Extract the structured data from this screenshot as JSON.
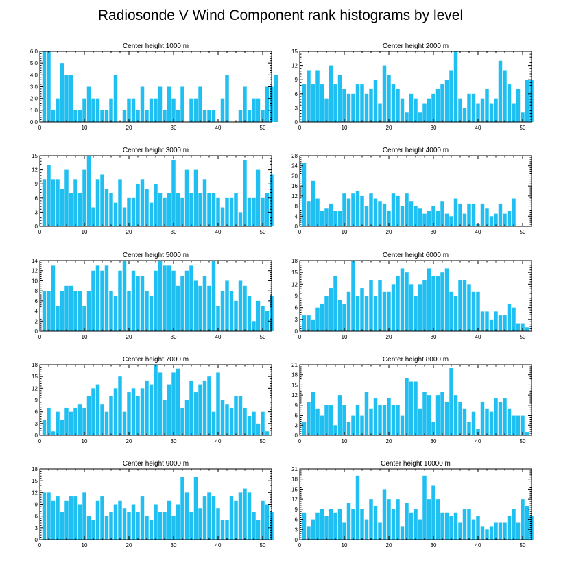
{
  "figure": {
    "title": "Radiosonde V Wind Component rank histograms by level",
    "bar_color": "#1fbff1"
  },
  "chart_data": [
    {
      "type": "bar",
      "title": "Center height 1000 m",
      "x_start": 1,
      "xlim": [
        0,
        52
      ],
      "xticks": [
        0,
        10,
        20,
        30,
        40,
        50
      ],
      "ylim": [
        0,
        6
      ],
      "yticks": [
        0,
        1,
        2,
        3,
        4,
        5,
        6
      ],
      "ytick_labels": [
        "0.0",
        "1.0",
        "2.0",
        "3.0",
        "4.0",
        "5.0",
        "6.0"
      ],
      "values": [
        6,
        6,
        1,
        2,
        5,
        4,
        4,
        1,
        1,
        2,
        3,
        2,
        2,
        1,
        1,
        2,
        4,
        0,
        1,
        2,
        2,
        1,
        3,
        1,
        2,
        2,
        3,
        1,
        3,
        2,
        1,
        3,
        0,
        2,
        2,
        3,
        1,
        1,
        1,
        0,
        2,
        4,
        0,
        0,
        1,
        3,
        1,
        2,
        2,
        1,
        3,
        3,
        4
      ]
    },
    {
      "type": "bar",
      "title": "Center height 2000 m",
      "x_start": 1,
      "xlim": [
        0,
        52
      ],
      "xticks": [
        0,
        10,
        20,
        30,
        40,
        50
      ],
      "ylim": [
        0,
        15
      ],
      "yticks": [
        0,
        3,
        6,
        9,
        12,
        15
      ],
      "ytick_labels": [
        "0",
        "3",
        "6",
        "9",
        "12",
        "15"
      ],
      "values": [
        8,
        11,
        8,
        11,
        8,
        5,
        12,
        8,
        10,
        7,
        6,
        6,
        8,
        8,
        6,
        7,
        9,
        4,
        12,
        10,
        8,
        7,
        5,
        2,
        6,
        5,
        2,
        4,
        5,
        6,
        7,
        8,
        9,
        11,
        15,
        5,
        3,
        6,
        6,
        4,
        5,
        7,
        4,
        5,
        13,
        11,
        8,
        4,
        7,
        2,
        9,
        9
      ]
    },
    {
      "type": "bar",
      "title": "Center height 3000 m",
      "x_start": 1,
      "xlim": [
        0,
        52
      ],
      "xticks": [
        0,
        10,
        20,
        30,
        40,
        50
      ],
      "ylim": [
        0,
        15
      ],
      "yticks": [
        0,
        3,
        6,
        9,
        12,
        15
      ],
      "ytick_labels": [
        "0",
        "3",
        "6",
        "9",
        "12",
        "15"
      ],
      "values": [
        10,
        13,
        10,
        10,
        8,
        12,
        7,
        10,
        7,
        12,
        15,
        4,
        10,
        11,
        8,
        7,
        5,
        10,
        4,
        6,
        6,
        9,
        10,
        8,
        5,
        9,
        7,
        6,
        7,
        14,
        7,
        6,
        12,
        7,
        12,
        7,
        10,
        7,
        7,
        6,
        4,
        6,
        6,
        7,
        3,
        14,
        6,
        6,
        12,
        6,
        7,
        11
      ]
    },
    {
      "type": "bar",
      "title": "Center height 4000 m",
      "x_start": 1,
      "xlim": [
        0,
        52
      ],
      "xticks": [
        0,
        10,
        20,
        30,
        40,
        50
      ],
      "ylim": [
        0,
        28
      ],
      "yticks": [
        0,
        4,
        8,
        12,
        16,
        20,
        24,
        28
      ],
      "ytick_labels": [
        "0",
        "4",
        "8",
        "12",
        "16",
        "20",
        "24",
        "28"
      ],
      "values": [
        25,
        10,
        18,
        11,
        6,
        7,
        9,
        6,
        6,
        13,
        11,
        13,
        14,
        12,
        8,
        13,
        11,
        10,
        9,
        6,
        13,
        12,
        8,
        13,
        10,
        8,
        7,
        5,
        6,
        8,
        6,
        10,
        5,
        4,
        11,
        9,
        5,
        9,
        9,
        1,
        9,
        7,
        4,
        5,
        9,
        5,
        6,
        11
      ]
    },
    {
      "type": "bar",
      "title": "Center height 5000 m",
      "x_start": 1,
      "xlim": [
        0,
        52
      ],
      "xticks": [
        0,
        10,
        20,
        30,
        40,
        50
      ],
      "ylim": [
        0,
        14
      ],
      "yticks": [
        0,
        2,
        4,
        6,
        8,
        10,
        12,
        14
      ],
      "ytick_labels": [
        "0",
        "2",
        "4",
        "6",
        "8",
        "10",
        "12",
        "14"
      ],
      "values": [
        8,
        8,
        13,
        5,
        8,
        9,
        9,
        8,
        8,
        5,
        8,
        12,
        13,
        12,
        13,
        8,
        7,
        12,
        14,
        8,
        12,
        11,
        11,
        8,
        7,
        12,
        14,
        13,
        13,
        12,
        9,
        11,
        12,
        13,
        10,
        9,
        11,
        9,
        14,
        5,
        8,
        10,
        8,
        6,
        10,
        9,
        7,
        2,
        6,
        5,
        4,
        7
      ]
    },
    {
      "type": "bar",
      "title": "Center height 6000 m",
      "x_start": 1,
      "xlim": [
        0,
        52
      ],
      "xticks": [
        0,
        10,
        20,
        30,
        40,
        50
      ],
      "ylim": [
        0,
        18
      ],
      "yticks": [
        0,
        3,
        6,
        9,
        12,
        15,
        18
      ],
      "ytick_labels": [
        "0",
        "3",
        "6",
        "9",
        "12",
        "15",
        "18"
      ],
      "values": [
        4,
        4,
        3,
        6,
        7,
        9,
        11,
        14,
        8,
        7,
        10,
        18,
        9,
        11,
        9,
        13,
        9,
        13,
        10,
        10,
        12,
        14,
        16,
        15,
        12,
        9,
        12,
        13,
        16,
        14,
        14,
        15,
        16,
        10,
        9,
        13,
        13,
        12,
        10,
        10,
        5,
        5,
        3,
        5,
        4,
        4,
        7,
        6,
        2,
        2,
        1
      ]
    },
    {
      "type": "bar",
      "title": "Center height 7000 m",
      "x_start": 1,
      "xlim": [
        0,
        52
      ],
      "xticks": [
        0,
        10,
        20,
        30,
        40,
        50
      ],
      "ylim": [
        0,
        18
      ],
      "yticks": [
        0,
        3,
        6,
        9,
        12,
        15,
        18
      ],
      "ytick_labels": [
        "0",
        "3",
        "6",
        "9",
        "12",
        "15",
        "18"
      ],
      "values": [
        4,
        7,
        1,
        6,
        4,
        7,
        6,
        7,
        8,
        7,
        10,
        12,
        13,
        8,
        6,
        10,
        12,
        15,
        6,
        11,
        12,
        10,
        12,
        14,
        13,
        18,
        16,
        9,
        13,
        16,
        17,
        7,
        9,
        14,
        11,
        13,
        14,
        15,
        6,
        16,
        9,
        8,
        7,
        10,
        10,
        7,
        5,
        6,
        3,
        6,
        1
      ]
    },
    {
      "type": "bar",
      "title": "Center height 8000 m",
      "x_start": 1,
      "xlim": [
        0,
        52
      ],
      "xticks": [
        0,
        10,
        20,
        30,
        40,
        50
      ],
      "ylim": [
        0,
        21
      ],
      "yticks": [
        0,
        3,
        6,
        9,
        12,
        15,
        18,
        21
      ],
      "ytick_labels": [
        "0",
        "3",
        "6",
        "9",
        "12",
        "15",
        "18",
        "21"
      ],
      "values": [
        4,
        10,
        13,
        8,
        6,
        9,
        9,
        3,
        12,
        9,
        4,
        6,
        9,
        6,
        13,
        8,
        11,
        9,
        9,
        11,
        9,
        9,
        6,
        17,
        16,
        16,
        8,
        13,
        12,
        4,
        12,
        13,
        10,
        20,
        12,
        10,
        8,
        4,
        7,
        2,
        10,
        8,
        7,
        11,
        10,
        11,
        8,
        6,
        6,
        6,
        1
      ]
    },
    {
      "type": "bar",
      "title": "Center height 9000 m",
      "x_start": 1,
      "xlim": [
        0,
        52
      ],
      "xticks": [
        0,
        10,
        20,
        30,
        40,
        50
      ],
      "ylim": [
        0,
        18
      ],
      "yticks": [
        0,
        3,
        6,
        9,
        12,
        15,
        18
      ],
      "ytick_labels": [
        "0",
        "3",
        "6",
        "9",
        "12",
        "15",
        "18"
      ],
      "values": [
        12,
        12,
        10,
        11,
        7,
        10,
        11,
        11,
        9,
        12,
        6,
        5,
        10,
        11,
        6,
        7,
        9,
        10,
        8,
        7,
        9,
        7,
        11,
        6,
        5,
        9,
        7,
        7,
        10,
        6,
        9,
        16,
        12,
        7,
        16,
        8,
        11,
        12,
        11,
        8,
        5,
        5,
        11,
        10,
        12,
        13,
        12,
        7,
        5,
        10,
        9,
        7
      ]
    },
    {
      "type": "bar",
      "title": "Center height 10000 m",
      "x_start": 1,
      "xlim": [
        0,
        52
      ],
      "xticks": [
        0,
        10,
        20,
        30,
        40,
        50
      ],
      "ylim": [
        0,
        21
      ],
      "yticks": [
        0,
        3,
        6,
        9,
        12,
        15,
        18,
        21
      ],
      "ytick_labels": [
        "0",
        "3",
        "6",
        "9",
        "12",
        "15",
        "18",
        "21"
      ],
      "values": [
        8,
        4,
        6,
        8,
        9,
        7,
        9,
        8,
        9,
        5,
        11,
        9,
        19,
        9,
        6,
        12,
        10,
        5,
        15,
        12,
        9,
        12,
        4,
        11,
        8,
        9,
        6,
        19,
        12,
        16,
        12,
        8,
        8,
        7,
        8,
        5,
        9,
        9,
        6,
        7,
        4,
        3,
        4,
        5,
        5,
        5,
        7,
        9,
        5,
        12,
        10,
        7
      ]
    }
  ]
}
